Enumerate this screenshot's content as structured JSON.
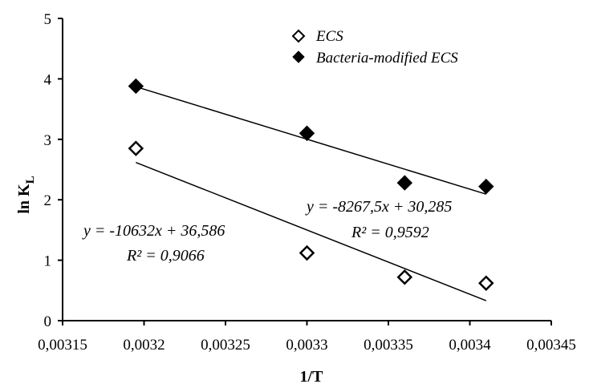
{
  "chart_data": {
    "type": "scatter",
    "xlabel": "1/T",
    "ylabel": {
      "main": "ln K",
      "sub": "L"
    },
    "xlim": [
      0.00315,
      0.00345
    ],
    "ylim": [
      0,
      5
    ],
    "x_ticks": [
      0.00315,
      0.0032,
      0.00325,
      0.0033,
      0.00335,
      0.0034,
      0.00345
    ],
    "x_tick_labels": [
      "0,00315",
      "0,0032",
      "0,00325",
      "0,0033",
      "0,00335",
      "0,0034",
      "0,00345"
    ],
    "y_ticks": [
      0,
      1,
      2,
      3,
      4,
      5
    ],
    "y_tick_labels": [
      "0",
      "1",
      "2",
      "3",
      "4",
      "5"
    ],
    "grid": false,
    "legend_position": "top-right",
    "series": [
      {
        "name": "ECS",
        "marker": "diamond-open",
        "color": "#000000",
        "x": [
          0.003195,
          0.0033,
          0.00336,
          0.00341
        ],
        "y": [
          2.85,
          1.12,
          0.72,
          0.62
        ],
        "trendline": {
          "slope": -10632,
          "intercept": 36.586
        },
        "equation": "y = -10632x + 36,586",
        "r2": "R² = 0,9066"
      },
      {
        "name": "Bacteria-modified ECS",
        "marker": "diamond-filled",
        "color": "#000000",
        "x": [
          0.003195,
          0.0033,
          0.00336,
          0.00341
        ],
        "y": [
          3.88,
          3.1,
          2.28,
          2.22
        ],
        "trendline": {
          "slope": -8267.5,
          "intercept": 30.285
        },
        "equation": "y = -8267,5x + 30,285",
        "r2": "R² = 0,9592"
      }
    ]
  }
}
